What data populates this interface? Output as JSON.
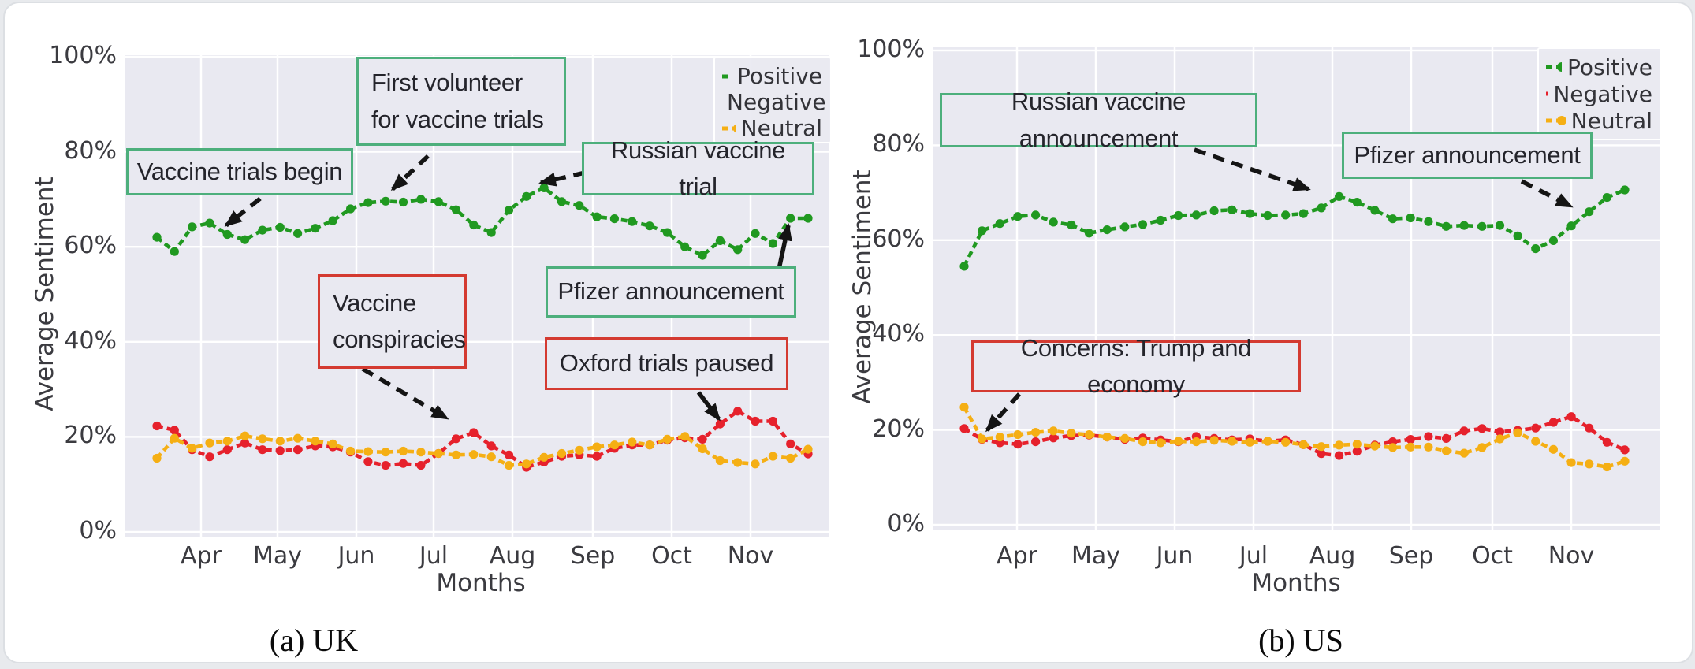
{
  "ui": {
    "captions": {
      "uk": "(a) UK",
      "us": "(b) US"
    }
  },
  "colors": {
    "positive": "#209920",
    "negative": "#e6212c",
    "neutral": "#f5af14",
    "plot_bg": "#e9e9f1",
    "grid": "#ffffff",
    "tick_text": "#3b3b40",
    "arrow": "#141414",
    "annotation_positive_border": "#4daf7c",
    "annotation_negative_border": "#d43a31"
  },
  "chart_data": [
    {
      "id": "uk",
      "type": "line",
      "caption": "(a) UK",
      "xlabel": "Months",
      "ylabel": "Average Sentiment",
      "x_tick_labels": [
        "Apr",
        "May",
        "Jun",
        "Jul",
        "Aug",
        "Sep",
        "Oct",
        "Nov"
      ],
      "y_tick_labels": [
        "0%",
        "20%",
        "40%",
        "60%",
        "80%",
        "100%"
      ],
      "y_tick_values": [
        0,
        20,
        40,
        60,
        80,
        100
      ],
      "ylim": [
        0,
        100
      ],
      "grid": true,
      "legend_position": "upper right",
      "legend_entries": [
        "Positive",
        "Negative",
        "Neutral"
      ],
      "series": [
        {
          "name": "Positive",
          "color_key": "positive",
          "values": [
            62,
            59,
            64.2,
            65,
            62.6,
            61.5,
            63.5,
            64.1,
            62.8,
            63.9,
            65.5,
            68,
            69.3,
            69.6,
            69.4,
            70,
            69.5,
            67.8,
            64.6,
            63,
            67.7,
            70.6,
            72.4,
            69.5,
            68.7,
            66.3,
            65.9,
            65.3,
            64.4,
            63,
            60,
            58.2,
            61.3,
            59.4,
            62.8,
            60.7,
            66,
            66
          ]
        },
        {
          "name": "Negative",
          "color_key": "negative",
          "values": [
            22.3,
            21.4,
            17.3,
            15.8,
            17.3,
            18.7,
            17.3,
            17.1,
            17.3,
            18.1,
            17.9,
            16.8,
            14.8,
            14,
            14.4,
            14,
            16.5,
            19.6,
            20.9,
            18.1,
            16.2,
            13.6,
            14.7,
            15.9,
            16.2,
            15.9,
            17.6,
            18.3,
            18.3,
            19.3,
            19.8,
            19.5,
            22.7,
            25.4,
            23.3,
            23.3,
            18.5,
            16.4
          ]
        },
        {
          "name": "Neutral",
          "color_key": "neutral",
          "values": [
            15.5,
            19.7,
            17.6,
            18.7,
            19.1,
            20.2,
            19.6,
            19.1,
            19.7,
            19.1,
            18.5,
            17,
            16.9,
            16.8,
            17,
            16.8,
            16.5,
            16.2,
            16.3,
            15.8,
            14,
            14.3,
            15.7,
            16.5,
            17.2,
            17.9,
            18.3,
            18.9,
            18.3,
            19.5,
            20.1,
            17.5,
            15,
            14.6,
            14.3,
            15.9,
            15.5,
            17.4
          ]
        }
      ],
      "annotations": [
        {
          "id": "uk-trials-begin",
          "kind": "positive",
          "lines": [
            "Vaccine trials begin"
          ]
        },
        {
          "id": "uk-first-volunteer",
          "kind": "positive",
          "lines": [
            "First volunteer",
            "for vaccine trials"
          ]
        },
        {
          "id": "uk-russian-trial",
          "kind": "positive",
          "lines": [
            "Russian vaccine trial"
          ]
        },
        {
          "id": "uk-pfizer",
          "kind": "positive",
          "lines": [
            "Pfizer announcement"
          ]
        },
        {
          "id": "uk-conspiracies",
          "kind": "negative",
          "lines": [
            "Vaccine",
            "conspiracies"
          ]
        },
        {
          "id": "uk-oxford",
          "kind": "negative",
          "lines": [
            "Oxford trials paused"
          ]
        }
      ]
    },
    {
      "id": "us",
      "type": "line",
      "caption": "(b) US",
      "xlabel": "Months",
      "ylabel": "Average Sentiment",
      "x_tick_labels": [
        "Apr",
        "May",
        "Jun",
        "Jul",
        "Aug",
        "Sep",
        "Oct",
        "Nov"
      ],
      "y_tick_labels": [
        "0%",
        "20%",
        "40%",
        "60%",
        "80%",
        "100%"
      ],
      "y_tick_values": [
        0,
        20,
        40,
        60,
        80,
        100
      ],
      "ylim": [
        0,
        100
      ],
      "grid": true,
      "legend_position": "upper right",
      "legend_entries": [
        "Positive",
        "Negative",
        "Neutral"
      ],
      "series": [
        {
          "name": "Positive",
          "color_key": "positive",
          "values": [
            54.5,
            62,
            63.5,
            65,
            65.3,
            63.8,
            63.2,
            61.5,
            62.2,
            62.8,
            63.3,
            64.2,
            65.2,
            65.3,
            66.2,
            66.4,
            65.6,
            65.2,
            65.3,
            65.6,
            66.8,
            69.2,
            68,
            66.3,
            64.5,
            64.7,
            63.9,
            62.9,
            63.1,
            62.9,
            63.1,
            60.9,
            58.2,
            59.9,
            63,
            66,
            69,
            70.6
          ]
        },
        {
          "name": "Negative",
          "color_key": "negative",
          "values": [
            20.3,
            18,
            17.3,
            17,
            17.5,
            18.3,
            18.8,
            18.9,
            18.5,
            18,
            18.3,
            17.9,
            17.5,
            18.6,
            18.2,
            17.9,
            18.1,
            17.6,
            17.9,
            16.9,
            15,
            14.6,
            15.5,
            16.8,
            17.5,
            18,
            18.6,
            18.2,
            19.8,
            20.3,
            19.6,
            19.9,
            20.4,
            21.6,
            22.8,
            20.4,
            17.4,
            15.8
          ]
        },
        {
          "name": "Neutral",
          "color_key": "neutral",
          "values": [
            24.8,
            18.1,
            18.5,
            19,
            19.5,
            19.8,
            19.3,
            19,
            18.5,
            18.2,
            17.5,
            17.3,
            17.6,
            17.5,
            17.8,
            17.6,
            17.4,
            17.6,
            17.4,
            16.9,
            16.5,
            16.8,
            17,
            16.6,
            16.3,
            16.4,
            16.4,
            15.6,
            15.1,
            16.3,
            18.1,
            19.4,
            17.6,
            15.9,
            13.1,
            12.8,
            12.2,
            13.4
          ]
        }
      ],
      "annotations": [
        {
          "id": "us-russian",
          "kind": "positive",
          "lines": [
            "Russian vaccine announcement"
          ]
        },
        {
          "id": "us-pfizer",
          "kind": "positive",
          "lines": [
            "Pfizer announcement"
          ]
        },
        {
          "id": "us-concerns",
          "kind": "negative",
          "lines": [
            "Concerns: Trump and economy"
          ]
        }
      ]
    }
  ]
}
